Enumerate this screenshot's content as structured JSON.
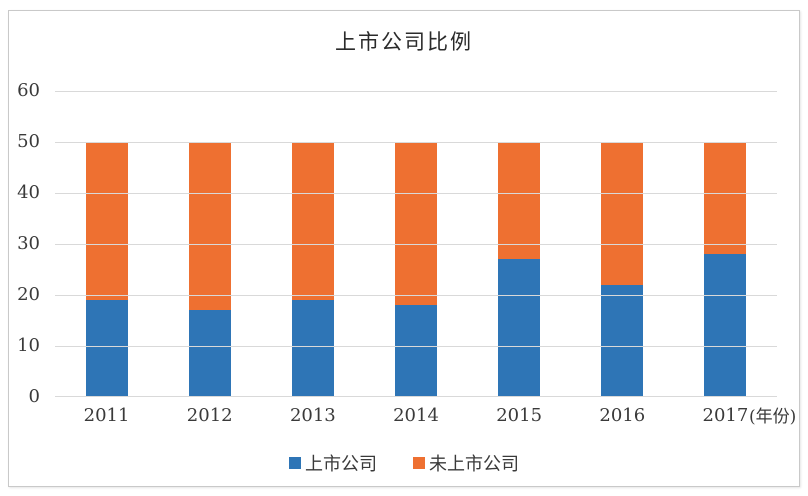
{
  "chart_data": {
    "type": "bar",
    "stacked": true,
    "title": "上市公司比例",
    "categories": [
      "2011",
      "2012",
      "2013",
      "2014",
      "2015",
      "2016",
      "2017"
    ],
    "series": [
      {
        "key": "listed",
        "name": "上市公司",
        "color": "#2E75B6",
        "values": [
          19,
          17,
          19,
          18,
          27,
          22,
          28
        ]
      },
      {
        "key": "unlisted",
        "name": "未上市公司",
        "color": "#EE7031",
        "values": [
          31,
          33,
          31,
          32,
          23,
          28,
          22
        ]
      }
    ],
    "x_suffix": "(年份)",
    "xlabel": "(年份)",
    "ylabel": "",
    "ylim": [
      0,
      60
    ],
    "ytick_step": 10,
    "y_tick_labels": [
      "0",
      "10",
      "20",
      "30",
      "40",
      "50",
      "60"
    ],
    "grid": true,
    "legend_position": "bottom"
  },
  "colors": {
    "grid": "#d9d9d9",
    "frame_border": "#c9c9c9",
    "text": "#3a3a3a"
  }
}
